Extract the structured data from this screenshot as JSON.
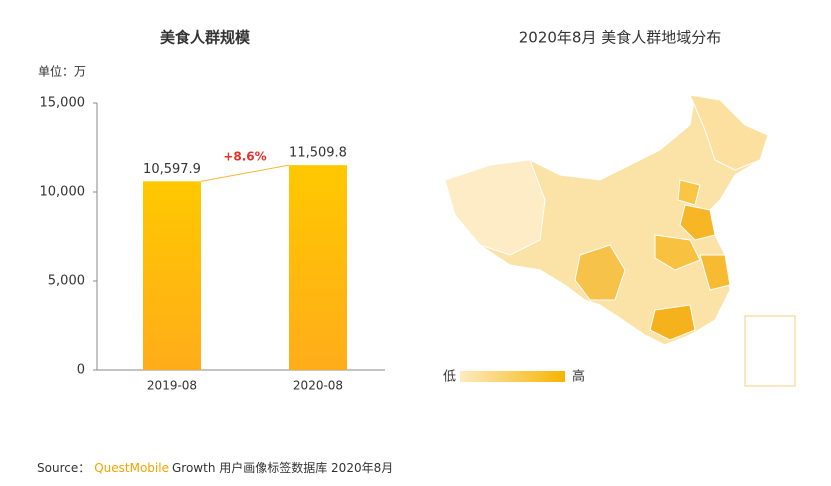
{
  "chart_data": [
    {
      "type": "bar",
      "title": "美食人群规模",
      "unit_label": "单位：万",
      "categories": [
        "2019-08",
        "2020-08"
      ],
      "values": [
        10597.9,
        11509.8
      ],
      "value_labels": [
        "10,597.9",
        "11,509.8"
      ],
      "color": "#ffc000",
      "ylim": [
        0,
        15000
      ],
      "yticks": [
        0,
        {
          "value": 5000,
          "label": "5,000"
        },
        {
          "value": 10000,
          "label": "10,000"
        },
        {
          "value": 15000,
          "label": "15,000"
        }
      ],
      "annotation": "+8.6%"
    },
    {
      "type": "map",
      "title": "2020年8月 美食人群地域分布",
      "legend_low": "低",
      "legend_high": "高"
    }
  ],
  "source": {
    "prefix": "Source：",
    "brand": "QuestMobile",
    "text": "Growth 用户画像标签数据库 2020年8月"
  }
}
